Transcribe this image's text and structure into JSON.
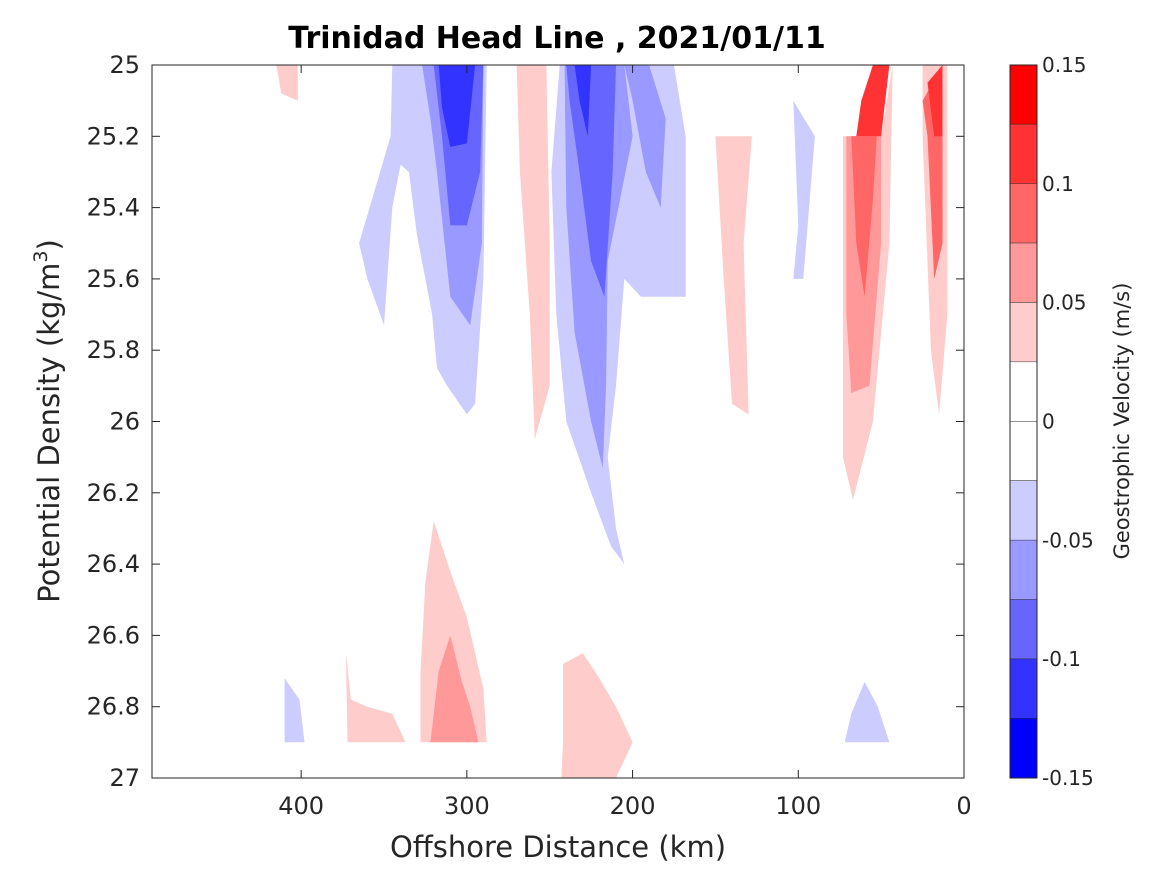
{
  "chart_data": {
    "type": "contour",
    "title": "Trinidad Head Line , 2021/01/11",
    "xlabel": "Offshore Distance (km)",
    "ylabel": "Potential Density (kg/m",
    "ylabel_sup": "3",
    "ylabel_close": ")",
    "xlim": [
      490,
      0
    ],
    "x_reversed": true,
    "ylim": [
      25,
      27
    ],
    "y_reversed": true,
    "xticks": [
      400,
      300,
      200,
      100,
      0
    ],
    "yticks": [
      25,
      25.2,
      25.4,
      25.6,
      25.8,
      26,
      26.2,
      26.4,
      26.6,
      26.8,
      27
    ],
    "colorbar": {
      "label": "Geostrophic Velocity (m/s)",
      "range": [
        -0.15,
        0.15
      ],
      "tick_values": [
        0.15,
        0.1,
        0.05,
        0,
        -0.05,
        -0.1,
        -0.15
      ],
      "tick_labels": [
        "0.15",
        "0.1",
        "0.05",
        "0",
        "-0.05",
        "-0.1",
        "-0.15"
      ],
      "levels": [
        {
          "range": [
            0.125,
            0.15
          ],
          "color": "#ff0000"
        },
        {
          "range": [
            0.1,
            0.125
          ],
          "color": "#ff3333"
        },
        {
          "range": [
            0.075,
            0.1
          ],
          "color": "#ff6666"
        },
        {
          "range": [
            0.05,
            0.075
          ],
          "color": "#ff9999"
        },
        {
          "range": [
            0.025,
            0.05
          ],
          "color": "#ffcccc"
        },
        {
          "range": [
            0,
            0.025
          ],
          "color": "#ffffff"
        },
        {
          "range": [
            -0.025,
            0
          ],
          "color": "#ffffff"
        },
        {
          "range": [
            -0.05,
            -0.025
          ],
          "color": "#ccccff"
        },
        {
          "range": [
            -0.075,
            -0.05
          ],
          "color": "#9999ff"
        },
        {
          "range": [
            -0.1,
            -0.075
          ],
          "color": "#6666ff"
        },
        {
          "range": [
            -0.125,
            -0.1
          ],
          "color": "#3333ff"
        },
        {
          "range": [
            -0.15,
            -0.125
          ],
          "color": "#0000ff"
        }
      ]
    },
    "regions": [
      {
        "level": -0.05,
        "color": "#ccccff",
        "points": [
          [
            410,
            26.72
          ],
          [
            401,
            26.78
          ],
          [
            398,
            26.9
          ],
          [
            410,
            26.9
          ]
        ]
      },
      {
        "level": -0.05,
        "color": "#ccccff",
        "points": [
          [
            72,
            26.9
          ],
          [
            45,
            26.9
          ],
          [
            52,
            26.8
          ],
          [
            60,
            26.73
          ],
          [
            68,
            26.82
          ]
        ]
      },
      {
        "level": -0.05,
        "color": "#ccccff",
        "points": [
          [
            345,
            25
          ],
          [
            288,
            25
          ],
          [
            290,
            25.6
          ],
          [
            295,
            25.95
          ],
          [
            300,
            25.98
          ],
          [
            312,
            25.9
          ],
          [
            318,
            25.85
          ],
          [
            321,
            25.7
          ],
          [
            325,
            25.6
          ],
          [
            330,
            25.48
          ],
          [
            335,
            25.3
          ],
          [
            340,
            25.28
          ],
          [
            345,
            25.4
          ],
          [
            350,
            25.73
          ],
          [
            360,
            25.6
          ],
          [
            365,
            25.5
          ],
          [
            346,
            25.2
          ]
        ]
      },
      {
        "level": -0.05,
        "color": "#ccccff",
        "points": [
          [
            244,
            25
          ],
          [
            227,
            25
          ],
          [
            200,
            25
          ],
          [
            189,
            25
          ],
          [
            175,
            25
          ],
          [
            168,
            25.2
          ],
          [
            168,
            25.65
          ],
          [
            180,
            25.65
          ],
          [
            195,
            25.65
          ],
          [
            205,
            25.6
          ],
          [
            210,
            25.9
          ],
          [
            215,
            26.1
          ],
          [
            210,
            26.3
          ],
          [
            205,
            26.4
          ],
          [
            213,
            26.35
          ],
          [
            225,
            26.2
          ],
          [
            240,
            26
          ],
          [
            246,
            25.7
          ],
          [
            249,
            25.3
          ]
        ]
      },
      {
        "level": -0.05,
        "color": "#ccccff",
        "points": [
          [
            103,
            25.1
          ],
          [
            90,
            25.2
          ],
          [
            97,
            25.6
          ],
          [
            103,
            25.6
          ],
          [
            100,
            25.45
          ]
        ]
      },
      {
        "level": -0.075,
        "color": "#9999ff",
        "points": [
          [
            327,
            25
          ],
          [
            290,
            25
          ],
          [
            291,
            25.5
          ],
          [
            298,
            25.73
          ],
          [
            310,
            25.65
          ],
          [
            318,
            25.3
          ],
          [
            322,
            25.15
          ]
        ]
      },
      {
        "level": -0.075,
        "color": "#9999ff",
        "points": [
          [
            241,
            25
          ],
          [
            205,
            25
          ],
          [
            200,
            25.2
          ],
          [
            215,
            25.55
          ],
          [
            216,
            25.9
          ],
          [
            218,
            26.13
          ],
          [
            225,
            26.0
          ],
          [
            235,
            25.75
          ],
          [
            240,
            25.4
          ]
        ]
      },
      {
        "level": -0.075,
        "color": "#9999ff",
        "points": [
          [
            205,
            25
          ],
          [
            190,
            25
          ],
          [
            180,
            25.15
          ],
          [
            183,
            25.4
          ],
          [
            192,
            25.3
          ],
          [
            200,
            25.1
          ]
        ]
      },
      {
        "level": -0.1,
        "color": "#6666ff",
        "points": [
          [
            320,
            25
          ],
          [
            290,
            25
          ],
          [
            292,
            25.3
          ],
          [
            300,
            25.45
          ],
          [
            310,
            25.45
          ],
          [
            315,
            25.2
          ]
        ]
      },
      {
        "level": -0.1,
        "color": "#6666ff",
        "points": [
          [
            240,
            25
          ],
          [
            210,
            25
          ],
          [
            212,
            25.3
          ],
          [
            217,
            25.65
          ],
          [
            225,
            25.55
          ],
          [
            232,
            25.3
          ],
          [
            238,
            25.1
          ]
        ]
      },
      {
        "level": -0.125,
        "color": "#3333ff",
        "points": [
          [
            317,
            25
          ],
          [
            295,
            25
          ],
          [
            300,
            25.22
          ],
          [
            310,
            25.23
          ],
          [
            315,
            25.12
          ]
        ]
      },
      {
        "level": -0.125,
        "color": "#3333ff",
        "points": [
          [
            235,
            25
          ],
          [
            225,
            25
          ],
          [
            227,
            25.2
          ],
          [
            232,
            25.1
          ]
        ]
      },
      {
        "level": 0.025,
        "color": "#ffcccc",
        "points": [
          [
            415,
            25
          ],
          [
            402,
            25
          ],
          [
            402,
            25.1
          ],
          [
            412,
            25.08
          ]
        ]
      },
      {
        "level": 0.025,
        "color": "#ffcccc",
        "points": [
          [
            270,
            25
          ],
          [
            252,
            25
          ],
          [
            250,
            25.5
          ],
          [
            250,
            25.9
          ],
          [
            259,
            26.05
          ],
          [
            262,
            25.7
          ],
          [
            268,
            25.3
          ]
        ]
      },
      {
        "level": 0.025,
        "color": "#ffcccc",
        "points": [
          [
            150,
            25.2
          ],
          [
            128,
            25.2
          ],
          [
            133,
            25.5
          ],
          [
            130,
            25.98
          ],
          [
            140,
            25.95
          ],
          [
            145,
            25.6
          ]
        ]
      },
      {
        "level": 0.025,
        "color": "#ffcccc",
        "points": [
          [
            73,
            25.2
          ],
          [
            50,
            25.2
          ],
          [
            43,
            25
          ],
          [
            45,
            25.5
          ],
          [
            55,
            26
          ],
          [
            67,
            26.22
          ],
          [
            73,
            26.1
          ]
        ]
      },
      {
        "level": 0.025,
        "color": "#ffcccc",
        "points": [
          [
            25,
            25.0
          ],
          [
            17,
            25.0
          ],
          [
            10,
            25
          ],
          [
            10,
            25.7
          ],
          [
            15,
            25.98
          ],
          [
            20,
            25.8
          ],
          [
            25,
            25.2
          ]
        ]
      },
      {
        "level": 0.025,
        "color": "#ffcccc",
        "points": [
          [
            337,
            26.9
          ],
          [
            372,
            26.9
          ],
          [
            373,
            26.65
          ],
          [
            370,
            26.78
          ],
          [
            360,
            26.8
          ],
          [
            345,
            26.82
          ]
        ]
      },
      {
        "level": 0.025,
        "color": "#ffcccc",
        "points": [
          [
            328,
            26.9
          ],
          [
            288,
            26.9
          ],
          [
            290,
            26.75
          ],
          [
            300,
            26.55
          ],
          [
            310,
            26.42
          ],
          [
            320,
            26.28
          ],
          [
            325,
            26.45
          ],
          [
            328,
            26.7
          ]
        ]
      },
      {
        "level": 0.025,
        "color": "#ffcccc",
        "points": [
          [
            242,
            26.9
          ],
          [
            242,
            26.68
          ],
          [
            230,
            26.65
          ],
          [
            220,
            26.72
          ],
          [
            210,
            26.8
          ],
          [
            200,
            26.9
          ],
          [
            210,
            27
          ],
          [
            243,
            27
          ]
        ]
      },
      {
        "level": 0.05,
        "color": "#ff9999",
        "points": [
          [
            71,
            25.2
          ],
          [
            50,
            25.2
          ],
          [
            50,
            25.5
          ],
          [
            57,
            25.9
          ],
          [
            68,
            25.92
          ],
          [
            71,
            25.7
          ]
        ]
      },
      {
        "level": 0.05,
        "color": "#ff9999",
        "points": [
          [
            322,
            26.9
          ],
          [
            293,
            26.9
          ],
          [
            298,
            26.8
          ],
          [
            303,
            26.73
          ],
          [
            310,
            26.6
          ],
          [
            317,
            26.7
          ]
        ]
      },
      {
        "level": 0.075,
        "color": "#ff6666",
        "points": [
          [
            68,
            25.2
          ],
          [
            50,
            25.2
          ],
          [
            50,
            25
          ],
          [
            55,
            25.38
          ],
          [
            60,
            25.65
          ],
          [
            65,
            25.5
          ]
        ]
      },
      {
        "level": 0.075,
        "color": "#ff6666",
        "points": [
          [
            25,
            25.1
          ],
          [
            13,
            25
          ],
          [
            13,
            25.5
          ],
          [
            18,
            25.6
          ],
          [
            22,
            25.2
          ]
        ]
      },
      {
        "level": 0.1,
        "color": "#ff3333",
        "points": [
          [
            65,
            25.2
          ],
          [
            50,
            25.2
          ],
          [
            45,
            25
          ],
          [
            55,
            25
          ],
          [
            62,
            25.1
          ]
        ]
      },
      {
        "level": 0.1,
        "color": "#ff3333",
        "points": [
          [
            22,
            25.05
          ],
          [
            13,
            25
          ],
          [
            13,
            25.2
          ],
          [
            18,
            25.2
          ]
        ]
      }
    ]
  }
}
